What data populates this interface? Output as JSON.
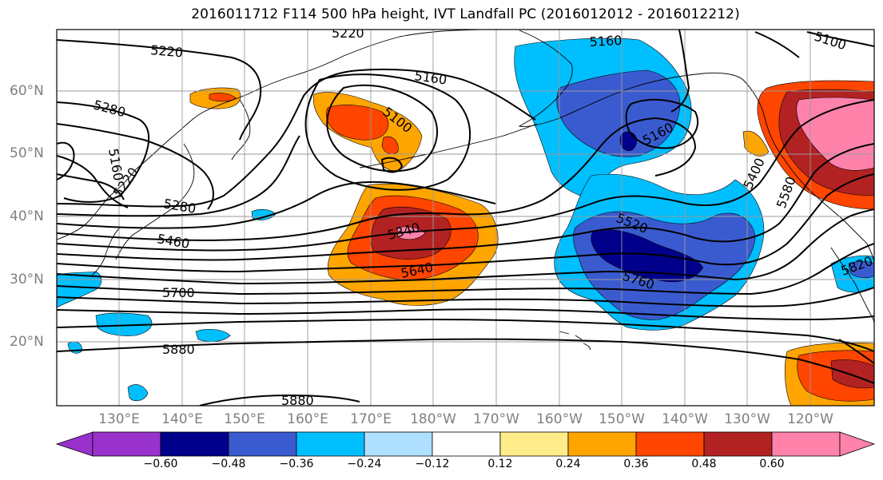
{
  "title": "2016011712 F114 500 hPa height, IVT Landfall PC (2016012012 - 2016012212)",
  "latitude_labels": [
    "60°N",
    "50°N",
    "40°N",
    "30°N",
    "20°N"
  ],
  "longitude_labels": [
    "130°E",
    "140°E",
    "150°E",
    "160°E",
    "170°E",
    "180°W",
    "170°W",
    "160°W",
    "150°W",
    "140°W",
    "130°W",
    "120°W"
  ],
  "contour_labels": [
    "5220",
    "5280",
    "5160",
    "5220",
    "5280",
    "5460",
    "5700",
    "5880",
    "5880",
    "5160",
    "5100",
    "5340",
    "5640",
    "5160",
    "5160",
    "5520",
    "5760",
    "5400",
    "5580",
    "5820",
    "5100",
    "5220"
  ],
  "colorbar": {
    "ticks": [
      "−0.60",
      "−0.48",
      "−0.36",
      "−0.24",
      "−0.12",
      "0.12",
      "0.24",
      "0.36",
      "0.48",
      "0.60"
    ],
    "colors": [
      "#9932CC",
      "#00008B",
      "#3A5BD0",
      "#00BFFF",
      "#B0E0FF",
      "#FFFFFF",
      "#FFEC8B",
      "#FFA500",
      "#FF4500",
      "#B22222",
      "#FF82AB"
    ]
  },
  "colors": {
    "contour": "#000000",
    "grid": "#999999",
    "coast": "#000000"
  }
}
